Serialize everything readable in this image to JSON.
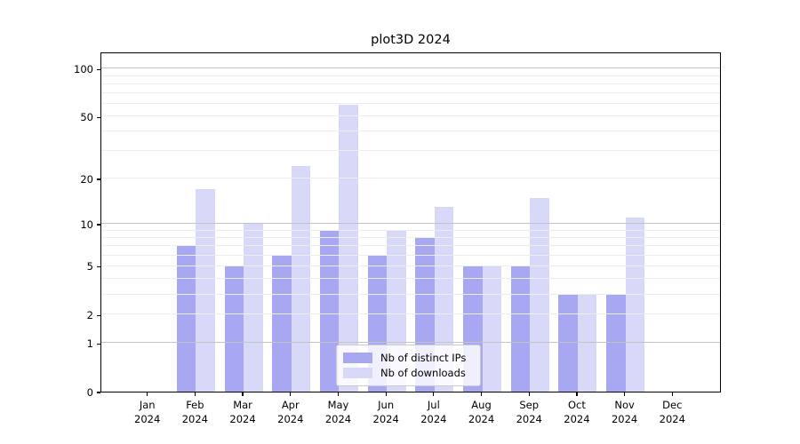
{
  "title": "plot3D 2024",
  "chart_data": {
    "type": "bar",
    "categories": [
      "Jan 2024",
      "Feb 2024",
      "Mar 2024",
      "Apr 2024",
      "May 2024",
      "Jun 2024",
      "Jul 2024",
      "Aug 2024",
      "Sep 2024",
      "Oct 2024",
      "Nov 2024",
      "Dec 2024"
    ],
    "series": [
      {
        "name": "Nb of distinct IPs",
        "color": "#a7a7f2",
        "values": [
          0,
          7,
          5,
          6,
          9,
          6,
          8,
          5,
          5,
          3,
          3,
          0
        ]
      },
      {
        "name": "Nb of downloads",
        "color": "#d8d8f8",
        "values": [
          0,
          17,
          10,
          24,
          59,
          9,
          13,
          5,
          15,
          3,
          11,
          0
        ]
      }
    ],
    "yscale": "log1p",
    "yticks": [
      0,
      1,
      2,
      5,
      10,
      20,
      50,
      100
    ],
    "major_gridlines": [
      1,
      10,
      100
    ],
    "minor_gridlines": [
      2,
      3,
      4,
      5,
      6,
      7,
      8,
      9,
      20,
      30,
      40,
      50,
      60,
      70,
      80,
      90
    ],
    "ylim_top": 128.6,
    "grid": "on",
    "legend_position": "lower center",
    "gridline_colors": {
      "major": "#c3c3c3",
      "minor": "#ededed"
    }
  }
}
